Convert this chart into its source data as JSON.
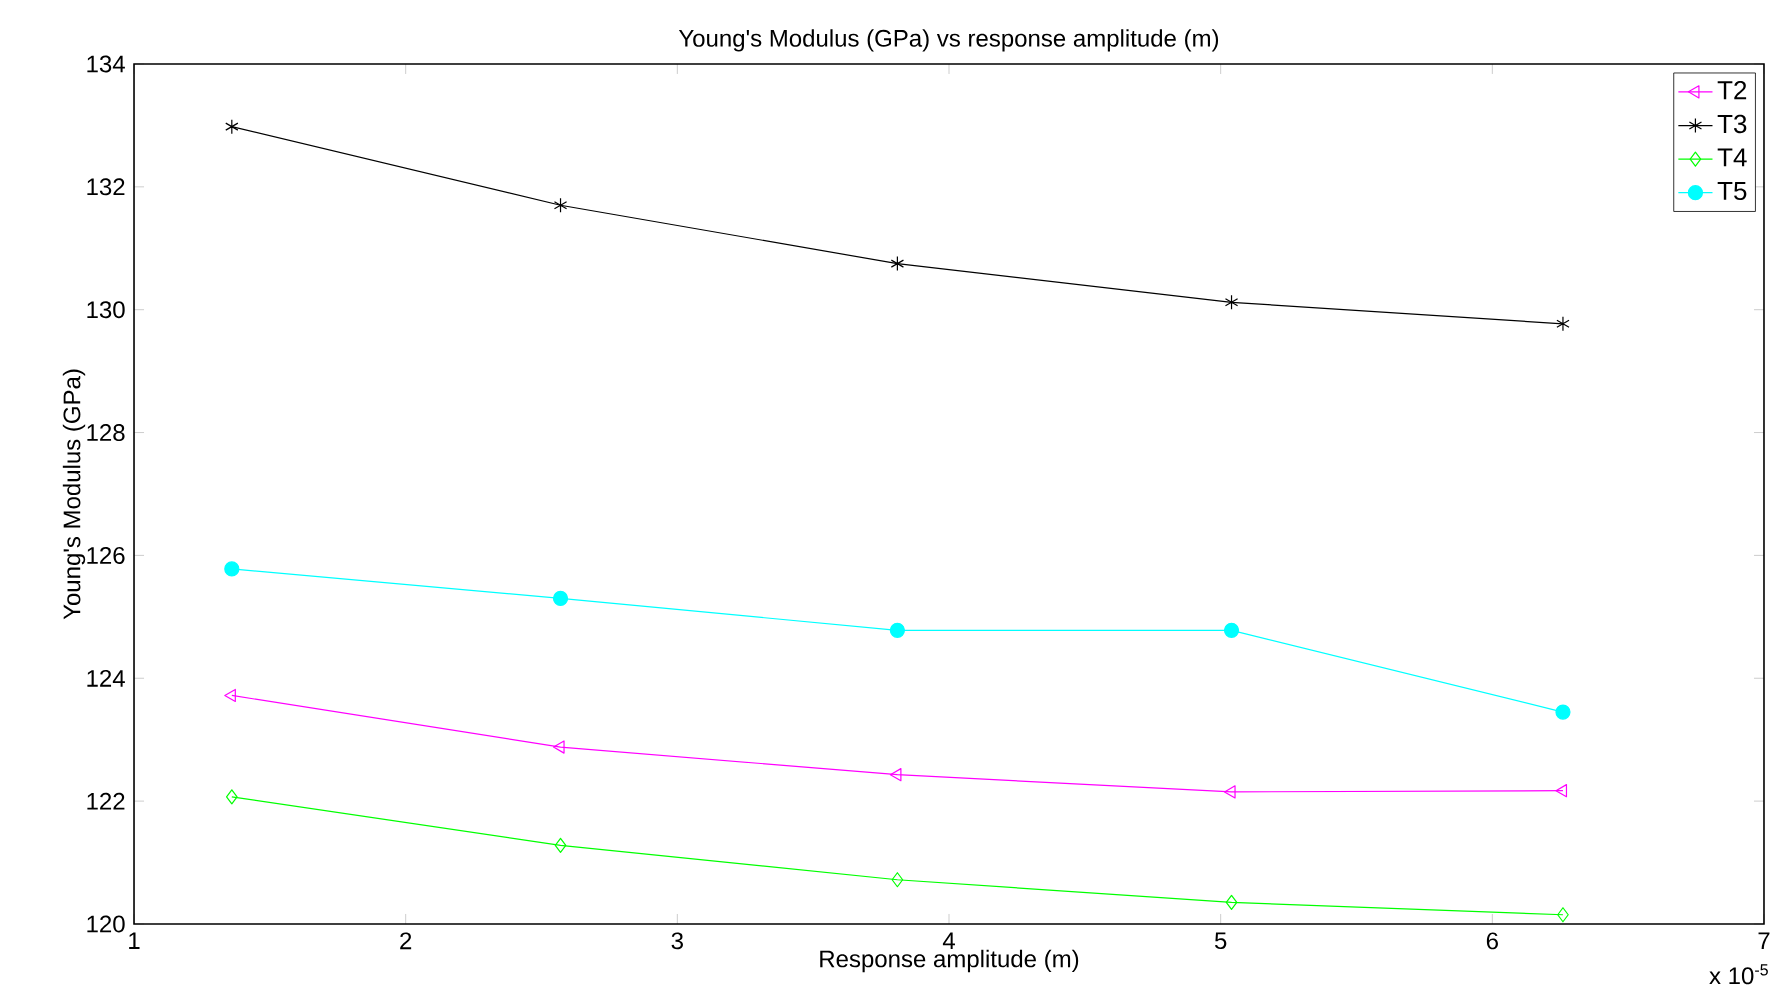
{
  "chart_data": {
    "type": "line",
    "title": "Young's Modulus (GPa) vs response amplitude (m)",
    "xlabel": "Response amplitude (m)",
    "ylabel": "Young's Modulus (GPa)",
    "x": [
      1.36,
      2.57,
      3.81,
      5.04,
      6.26
    ],
    "series": [
      {
        "name": "T2",
        "color": "#ff00ff",
        "marker": "triangle",
        "values": [
          123.72,
          122.88,
          122.43,
          122.15,
          122.17
        ]
      },
      {
        "name": "T3",
        "color": "#000000",
        "marker": "cross",
        "values": [
          132.98,
          131.7,
          130.75,
          130.12,
          129.77
        ]
      },
      {
        "name": "T4",
        "color": "#00ff00",
        "marker": "diamond",
        "values": [
          122.07,
          121.28,
          120.72,
          120.35,
          120.15
        ]
      },
      {
        "name": "T5",
        "color": "#00ffff",
        "marker": "circle",
        "values": [
          125.78,
          125.3,
          124.78,
          124.78,
          123.45
        ]
      }
    ],
    "xlim": [
      1,
      7
    ],
    "xticks": [
      1,
      2,
      3,
      4,
      5,
      6,
      7
    ],
    "ylim": [
      120,
      134
    ],
    "yticks": [
      120,
      122,
      124,
      126,
      128,
      130,
      132,
      134
    ],
    "legend": "top right",
    "grid": false,
    "line_style": "solid",
    "annotations": [
      "x 10$^{-5}$"
    ]
  }
}
